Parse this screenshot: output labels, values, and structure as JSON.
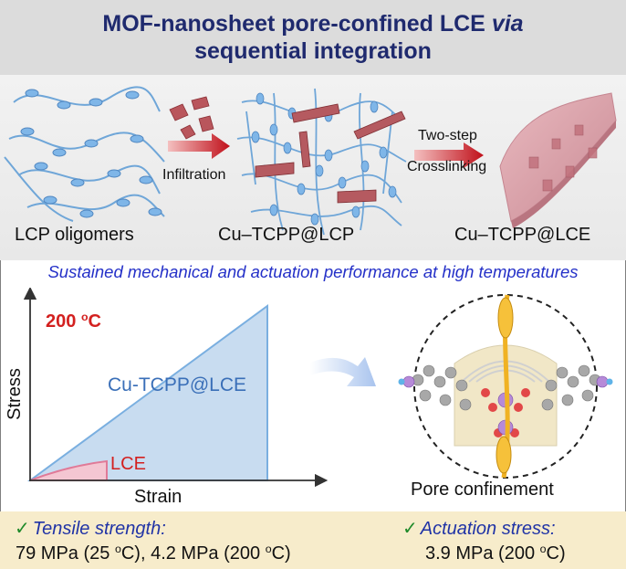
{
  "title": {
    "line1_pre": "MOF-nanosheet pore-confined LCE ",
    "line1_italic": "via",
    "line2": "sequential integration"
  },
  "process": {
    "step1": "LCP oligomers",
    "arrow1": "Infiltration",
    "step2": "Cu–TCPP@LCP",
    "arrow2_line1": "Two-step",
    "arrow2_line2": "Crosslinking",
    "step3": "Cu–TCPP@LCE"
  },
  "subtitle": "Sustained mechanical and actuation performance at high temperatures",
  "chart": {
    "temperature": "200 ",
    "temperature_unit": "o",
    "temperature_suffix": "C",
    "ylabel": "Stress",
    "xlabel": "Strain",
    "series_large": "Cu-TCPP@LCE",
    "series_small": "LCE"
  },
  "illustration": {
    "caption": "Pore confinement"
  },
  "metrics": {
    "check": "✓",
    "tensile_label": "Tensile strength:",
    "tensile_v1": "79 MPa (25 ",
    "tensile_u1": "o",
    "tensile_v2": "C), 4.2 MPa (200 ",
    "tensile_u2": "o",
    "tensile_v3": "C)",
    "actuation_label": "Actuation stress:",
    "actuation_v1": "3.9 MPa (200 ",
    "actuation_u1": "o",
    "actuation_v2": "C)"
  },
  "colors": {
    "title_text": "#1f2a6e",
    "subtitle_text": "#2430c8",
    "chart_accent": "#d3201f",
    "large_fill": "#c8dcf0",
    "small_fill": "#f4c6d2",
    "bottom_bar": "#f7eccb"
  }
}
